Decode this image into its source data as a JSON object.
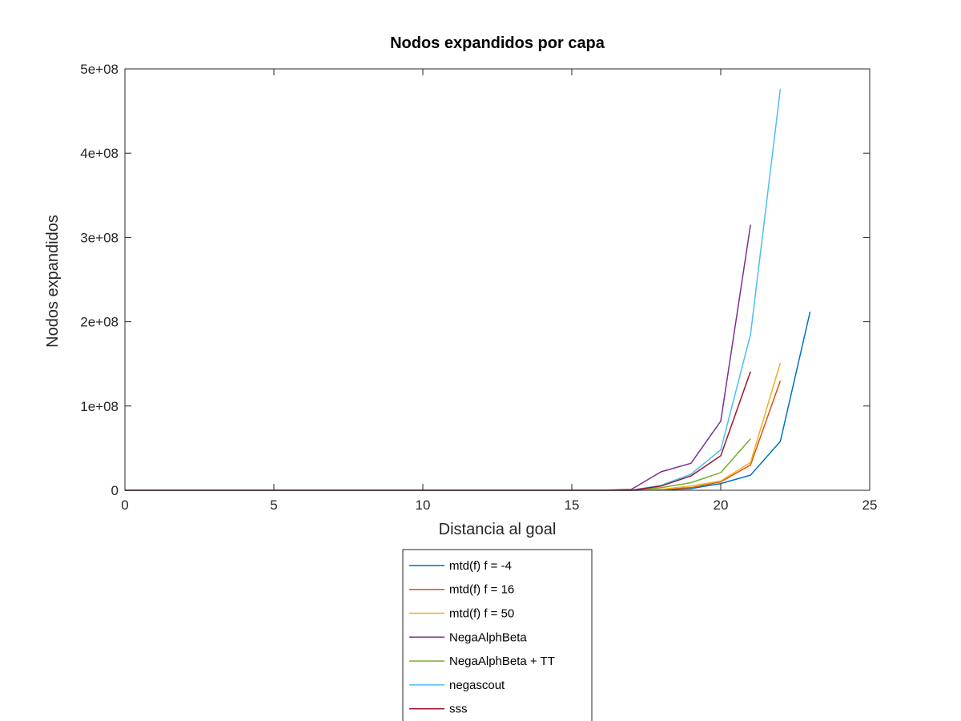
{
  "chart_data": {
    "type": "line",
    "title": "Nodos expandidos por capa",
    "xlabel": "Distancia al goal",
    "ylabel": "Nodos expandidos",
    "xlim": [
      0,
      25
    ],
    "ylim": [
      0,
      500000000
    ],
    "xticks": [
      0,
      5,
      10,
      15,
      20,
      25
    ],
    "xtick_labels": [
      "0",
      "5",
      "10",
      "15",
      "20",
      "25"
    ],
    "yticks": [
      0,
      100000000,
      200000000,
      300000000,
      400000000,
      500000000
    ],
    "ytick_labels": [
      "0",
      "1e+08",
      "2e+08",
      "3e+08",
      "4e+08",
      "5e+08"
    ],
    "grid": false,
    "legend_position": "bottom-outside",
    "series": [
      {
        "name": "mtd(f) f = -4",
        "color": "#0072bd",
        "x": [
          0,
          15,
          16,
          17,
          18,
          19,
          20,
          21,
          22,
          23
        ],
        "y": [
          0,
          0,
          0,
          0,
          500000,
          2000000,
          8000000,
          18000000,
          58000000,
          212000000
        ]
      },
      {
        "name": "mtd(f) f = 16",
        "color": "#d95319",
        "x": [
          0,
          15,
          16,
          17,
          18,
          19,
          20,
          21,
          22
        ],
        "y": [
          0,
          0,
          0,
          0,
          1000000,
          3000000,
          10000000,
          30000000,
          130000000
        ]
      },
      {
        "name": "mtd(f) f = 50",
        "color": "#edb120",
        "x": [
          0,
          15,
          16,
          17,
          18,
          19,
          20,
          21,
          22
        ],
        "y": [
          0,
          0,
          0,
          0,
          1000000,
          5000000,
          11000000,
          33000000,
          151000000
        ]
      },
      {
        "name": "NegaAlphBeta",
        "color": "#7e2f8e",
        "x": [
          0,
          15,
          16,
          17,
          18,
          19,
          20,
          21
        ],
        "y": [
          0,
          0,
          0,
          1000000,
          22000000,
          32000000,
          82000000,
          315000000
        ]
      },
      {
        "name": "NegaAlphBeta + TT",
        "color": "#77ac30",
        "x": [
          0,
          15,
          16,
          17,
          18,
          19,
          20,
          21
        ],
        "y": [
          0,
          0,
          0,
          0,
          3000000,
          9000000,
          21000000,
          61000000
        ]
      },
      {
        "name": "negascout",
        "color": "#4dbeee",
        "x": [
          0,
          15,
          16,
          17,
          18,
          19,
          20,
          21,
          22
        ],
        "y": [
          0,
          0,
          0,
          0,
          6000000,
          19000000,
          48000000,
          185000000,
          476000000
        ]
      },
      {
        "name": "sss",
        "color": "#a2142f",
        "x": [
          0,
          15,
          16,
          17,
          18,
          19,
          20,
          21
        ],
        "y": [
          0,
          0,
          0,
          0,
          5000000,
          17000000,
          41000000,
          141000000
        ]
      }
    ]
  }
}
